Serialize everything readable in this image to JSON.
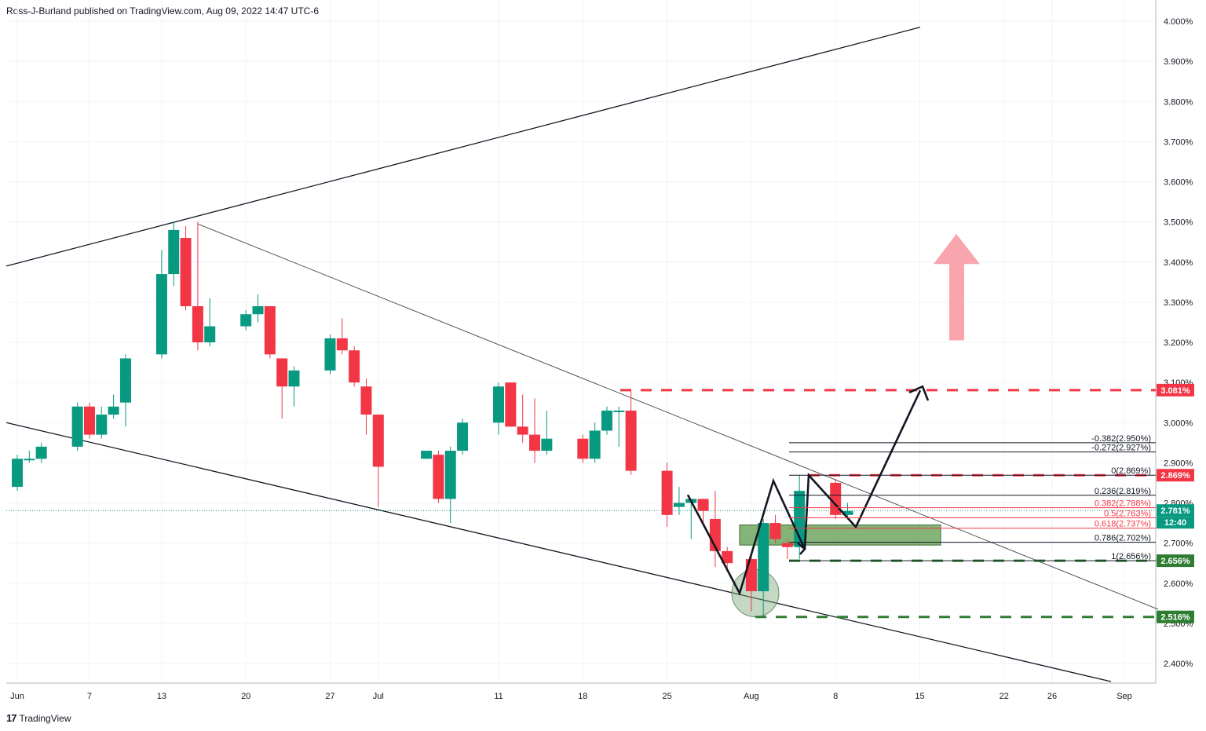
{
  "header": {
    "text": "Ross-J-Burland published on TradingView.com, Aug 09, 2022 14:47 UTC-6"
  },
  "footer": {
    "logo": "17",
    "brand": "TradingView"
  },
  "colors": {
    "up": "#089981",
    "down": "#f23645",
    "grid": "#f0f3fa",
    "axis": "#b2b5be",
    "green_dash": "#2e7d32",
    "red_dash": "#f23645",
    "zone": "#5b9b4a",
    "arrow_pink": "#f8a5ad",
    "price_line": "#089981",
    "fib_red": "#f23645",
    "fib_black": "#131722"
  },
  "chart_data": {
    "type": "candlestick",
    "title": "",
    "xlabel": "",
    "ylabel": "",
    "ylim": [
      2.36,
      4.0
    ],
    "grid": true,
    "y_ticks": [
      "4.000%",
      "3.900%",
      "3.800%",
      "3.700%",
      "3.600%",
      "3.500%",
      "3.400%",
      "3.300%",
      "3.200%",
      "3.100%",
      "3.000%",
      "2.900%",
      "2.800%",
      "2.700%",
      "2.600%",
      "2.500%",
      "2.400%"
    ],
    "y_tick_values": [
      4.0,
      3.9,
      3.8,
      3.7,
      3.6,
      3.5,
      3.4,
      3.3,
      3.2,
      3.1,
      3.0,
      2.9,
      2.8,
      2.7,
      2.6,
      2.5,
      2.4
    ],
    "x_ticks": [
      {
        "label": "Jun",
        "date": "2022-06-01"
      },
      {
        "label": "7",
        "date": "2022-06-07"
      },
      {
        "label": "13",
        "date": "2022-06-13"
      },
      {
        "label": "20",
        "date": "2022-06-20"
      },
      {
        "label": "27",
        "date": "2022-06-27"
      },
      {
        "label": "Jul",
        "date": "2022-07-01"
      },
      {
        "label": "11",
        "date": "2022-07-11"
      },
      {
        "label": "18",
        "date": "2022-07-18"
      },
      {
        "label": "25",
        "date": "2022-07-25"
      },
      {
        "label": "Aug",
        "date": "2022-08-01"
      },
      {
        "label": "8",
        "date": "2022-08-08"
      },
      {
        "label": "15",
        "date": "2022-08-15"
      },
      {
        "label": "22",
        "date": "2022-08-22"
      },
      {
        "label": "26",
        "date": "2022-08-26"
      },
      {
        "label": "Sep",
        "date": "2022-09-01"
      }
    ],
    "candles": [
      {
        "d": "2022-06-01",
        "o": 2.84,
        "h": 2.92,
        "l": 2.83,
        "c": 2.91
      },
      {
        "d": "2022-06-02",
        "o": 2.91,
        "h": 2.93,
        "l": 2.9,
        "c": 2.91
      },
      {
        "d": "2022-06-03",
        "o": 2.91,
        "h": 2.95,
        "l": 2.9,
        "c": 2.94
      },
      {
        "d": "2022-06-06",
        "o": 2.94,
        "h": 3.05,
        "l": 2.93,
        "c": 3.04
      },
      {
        "d": "2022-06-07",
        "o": 3.04,
        "h": 3.05,
        "l": 2.96,
        "c": 2.97
      },
      {
        "d": "2022-06-08",
        "o": 2.97,
        "h": 3.04,
        "l": 2.96,
        "c": 3.02
      },
      {
        "d": "2022-06-09",
        "o": 3.02,
        "h": 3.07,
        "l": 3.01,
        "c": 3.04
      },
      {
        "d": "2022-06-10",
        "o": 3.05,
        "h": 3.17,
        "l": 2.99,
        "c": 3.16
      },
      {
        "d": "2022-06-13",
        "o": 3.17,
        "h": 3.43,
        "l": 3.16,
        "c": 3.37
      },
      {
        "d": "2022-06-14",
        "o": 3.37,
        "h": 3.5,
        "l": 3.34,
        "c": 3.48
      },
      {
        "d": "2022-06-15",
        "o": 3.46,
        "h": 3.49,
        "l": 3.28,
        "c": 3.29
      },
      {
        "d": "2022-06-16",
        "o": 3.29,
        "h": 3.5,
        "l": 3.18,
        "c": 3.2
      },
      {
        "d": "2022-06-17",
        "o": 3.2,
        "h": 3.31,
        "l": 3.19,
        "c": 3.24
      },
      {
        "d": "2022-06-20",
        "o": 3.24,
        "h": 3.28,
        "l": 3.23,
        "c": 3.27
      },
      {
        "d": "2022-06-21",
        "o": 3.27,
        "h": 3.32,
        "l": 3.25,
        "c": 3.29
      },
      {
        "d": "2022-06-22",
        "o": 3.29,
        "h": 3.29,
        "l": 3.16,
        "c": 3.17
      },
      {
        "d": "2022-06-23",
        "o": 3.16,
        "h": 3.16,
        "l": 3.01,
        "c": 3.09
      },
      {
        "d": "2022-06-24",
        "o": 3.09,
        "h": 3.14,
        "l": 3.04,
        "c": 3.13
      },
      {
        "d": "2022-06-27",
        "o": 3.13,
        "h": 3.22,
        "l": 3.12,
        "c": 3.21
      },
      {
        "d": "2022-06-28",
        "o": 3.21,
        "h": 3.26,
        "l": 3.17,
        "c": 3.18
      },
      {
        "d": "2022-06-29",
        "o": 3.18,
        "h": 3.19,
        "l": 3.09,
        "c": 3.1
      },
      {
        "d": "2022-06-30",
        "o": 3.09,
        "h": 3.11,
        "l": 2.97,
        "c": 3.02
      },
      {
        "d": "2022-07-01",
        "o": 3.02,
        "h": 3.02,
        "l": 2.79,
        "c": 2.89
      },
      {
        "d": "2022-07-05",
        "o": 2.91,
        "h": 2.92,
        "l": 2.91,
        "c": 2.93
      },
      {
        "d": "2022-07-06",
        "o": 2.92,
        "h": 2.93,
        "l": 2.8,
        "c": 2.81
      },
      {
        "d": "2022-07-07",
        "o": 2.81,
        "h": 2.94,
        "l": 2.75,
        "c": 2.93
      },
      {
        "d": "2022-07-08",
        "o": 2.93,
        "h": 3.01,
        "l": 2.92,
        "c": 3.0
      },
      {
        "d": "2022-07-11",
        "o": 3.0,
        "h": 3.1,
        "l": 2.97,
        "c": 3.09
      },
      {
        "d": "2022-07-12",
        "o": 3.1,
        "h": 3.1,
        "l": 2.99,
        "c": 2.99
      },
      {
        "d": "2022-07-13",
        "o": 2.99,
        "h": 3.07,
        "l": 2.95,
        "c": 2.97
      },
      {
        "d": "2022-07-14",
        "o": 2.97,
        "h": 3.06,
        "l": 2.9,
        "c": 2.93
      },
      {
        "d": "2022-07-15",
        "o": 2.93,
        "h": 3.03,
        "l": 2.92,
        "c": 2.96
      },
      {
        "d": "2022-07-18",
        "o": 2.96,
        "h": 2.97,
        "l": 2.9,
        "c": 2.91
      },
      {
        "d": "2022-07-19",
        "o": 2.91,
        "h": 3.0,
        "l": 2.9,
        "c": 2.98
      },
      {
        "d": "2022-07-20",
        "o": 2.98,
        "h": 3.04,
        "l": 2.97,
        "c": 3.03
      },
      {
        "d": "2022-07-21",
        "o": 3.03,
        "h": 3.04,
        "l": 2.94,
        "c": 3.03
      },
      {
        "d": "2022-07-22",
        "o": 3.03,
        "h": 3.08,
        "l": 2.87,
        "c": 2.88
      },
      {
        "d": "2022-07-25",
        "o": 2.88,
        "h": 2.9,
        "l": 2.74,
        "c": 2.77
      },
      {
        "d": "2022-07-26",
        "o": 2.79,
        "h": 2.84,
        "l": 2.77,
        "c": 2.8
      },
      {
        "d": "2022-07-27",
        "o": 2.8,
        "h": 2.81,
        "l": 2.71,
        "c": 2.81
      },
      {
        "d": "2022-07-28",
        "o": 2.81,
        "h": 2.81,
        "l": 2.75,
        "c": 2.78
      },
      {
        "d": "2022-07-29",
        "o": 2.76,
        "h": 2.83,
        "l": 2.64,
        "c": 2.68
      },
      {
        "d": "2022-07-30",
        "o": 2.68,
        "h": 2.69,
        "l": 2.63,
        "c": 2.65
      },
      {
        "d": "2022-08-01",
        "o": 2.66,
        "h": 2.67,
        "l": 2.53,
        "c": 2.58
      },
      {
        "d": "2022-08-02",
        "o": 2.58,
        "h": 2.76,
        "l": 2.52,
        "c": 2.75
      },
      {
        "d": "2022-08-03",
        "o": 2.75,
        "h": 2.77,
        "l": 2.7,
        "c": 2.71
      },
      {
        "d": "2022-08-04",
        "o": 2.7,
        "h": 2.71,
        "l": 2.66,
        "c": 2.69
      },
      {
        "d": "2022-08-05",
        "o": 2.69,
        "h": 2.87,
        "l": 2.66,
        "c": 2.83
      },
      {
        "d": "2022-08-08",
        "o": 2.85,
        "h": 2.86,
        "l": 2.76,
        "c": 2.77
      },
      {
        "d": "2022-08-09",
        "o": 2.77,
        "h": 2.8,
        "l": 2.76,
        "c": 2.78
      }
    ],
    "fib_levels": [
      {
        "label": "-0.382(2.950%)",
        "value": 2.95,
        "color": "black"
      },
      {
        "label": "-0.272(2.927%)",
        "value": 2.927,
        "color": "black"
      },
      {
        "label": "0(2.869%)",
        "value": 2.869,
        "color": "black"
      },
      {
        "label": "0.236(2.819%)",
        "value": 2.819,
        "color": "black"
      },
      {
        "label": "0.382(2.788%)",
        "value": 2.788,
        "color": "red"
      },
      {
        "label": "0.5(2.763%)",
        "value": 2.763,
        "color": "red"
      },
      {
        "label": "0.618(2.737%)",
        "value": 2.737,
        "color": "red"
      },
      {
        "label": "0.786(2.702%)",
        "value": 2.702,
        "color": "black"
      },
      {
        "label": "1(2.656%)",
        "value": 2.656,
        "color": "black"
      }
    ],
    "price_tags": [
      {
        "label": "3.081%",
        "value": 3.081,
        "color": "#f23645"
      },
      {
        "label": "2.869%",
        "value": 2.869,
        "color": "#f23645"
      },
      {
        "label": "2.781%",
        "value": 2.781,
        "color": "#089981"
      },
      {
        "label": "2.656%",
        "value": 2.656,
        "color": "#2e7d32"
      },
      {
        "label": "2.516%",
        "value": 2.516,
        "color": "#2e7d32"
      }
    ],
    "countdown": "12:40",
    "current_price": 2.781
  }
}
